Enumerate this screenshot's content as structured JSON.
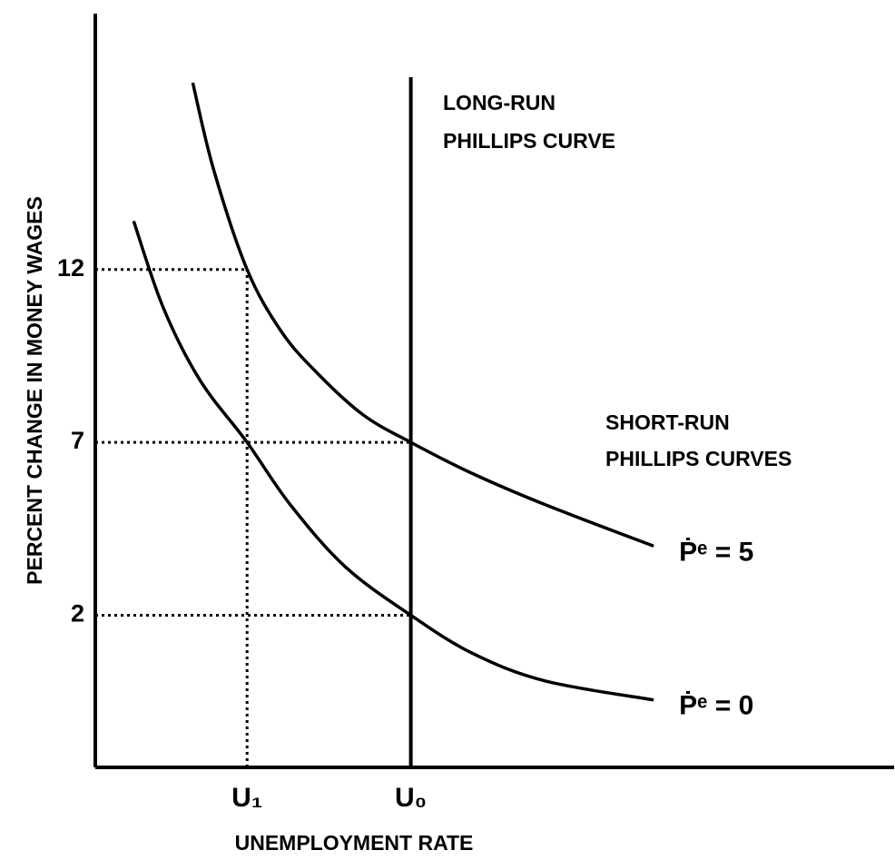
{
  "chart_data": {
    "type": "line",
    "ylabel": "PERCENT CHANGE IN MONEY WAGES",
    "xlabel": "UNEMPLOYMENT RATE",
    "xlim": [
      0,
      10
    ],
    "ylim": [
      -2.4,
      19.4
    ],
    "xticks": [
      {
        "value": 1.9,
        "label": "U₁"
      },
      {
        "value": 3.95,
        "label": "U₀"
      }
    ],
    "yticks": [
      2,
      7,
      12
    ],
    "long_run_label": [
      "LONG-RUN",
      "PHILLIPS CURVE"
    ],
    "short_run_label": [
      "SHORT-RUN",
      "PHILLIPS CURVES"
    ],
    "color": "#000000",
    "series": [
      {
        "name": "Ṗᵉ = 5",
        "color": "#000000",
        "x": [
          1.22,
          1.48,
          1.9,
          2.33,
          2.78,
          3.35,
          3.95,
          4.72,
          5.63,
          6.99
        ],
        "values": [
          17.4,
          14.9,
          12,
          10.2,
          9.0,
          7.8,
          7,
          6.1,
          5.2,
          4.0
        ]
      },
      {
        "name": "Ṗᵉ = 0",
        "color": "#000000",
        "x": [
          0.48,
          0.85,
          1.31,
          1.9,
          2.44,
          3.13,
          3.95,
          4.72,
          5.63,
          6.99
        ],
        "values": [
          13.4,
          10.9,
          8.8,
          7,
          5.2,
          3.4,
          2,
          0.9,
          0.1,
          -0.45
        ]
      }
    ]
  }
}
